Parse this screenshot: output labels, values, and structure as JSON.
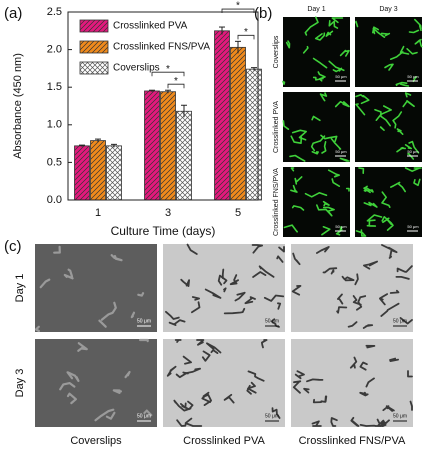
{
  "chart_data": {
    "type": "bar",
    "panel_label": "(a)",
    "y_label": "Absorbance (450 nm)",
    "x_label": "Culture Time (days)",
    "categories": [
      "1",
      "3",
      "5"
    ],
    "series": [
      {
        "name": "Crosslinked PVA",
        "color": "#e3197d",
        "values": [
          0.72,
          1.45,
          2.25
        ],
        "errors": [
          0.01,
          0.01,
          0.05
        ]
      },
      {
        "name": "Crosslinked FNS/PVA",
        "color": "#f08a1c",
        "values": [
          0.79,
          1.44,
          2.03
        ],
        "errors": [
          0.02,
          0.02,
          0.08
        ]
      },
      {
        "name": "Coverslips",
        "color": "#ffffff",
        "values": [
          0.72,
          1.18,
          1.74
        ],
        "errors": [
          0.02,
          0.08,
          0.02
        ]
      }
    ],
    "ylim": [
      0,
      2.5
    ],
    "yticks": [
      {
        "value": 0,
        "label": "0.0"
      },
      0.5,
      {
        "value": 1,
        "label": "1.0"
      },
      1.5,
      {
        "value": 2,
        "label": "2.0"
      },
      2.5
    ],
    "significance": [
      {
        "category": "3",
        "from": "Crosslinked PVA",
        "to": "Coverslips",
        "label": "*"
      },
      {
        "category": "3",
        "from": "Crosslinked FNS/PVA",
        "to": "Coverslips",
        "label": "*"
      },
      {
        "category": "5",
        "from": "Crosslinked PVA",
        "to": "Coverslips",
        "label": "*"
      },
      {
        "category": "5",
        "from": "Crosslinked FNS/PVA",
        "to": "Coverslips",
        "label": "*"
      }
    ]
  },
  "panel_b": {
    "label": "(b)",
    "columns": [
      "Day 1",
      "Day 3"
    ],
    "rows": [
      "Coverslips",
      "Crosslinked PVA",
      "Crosslinked FNS/PVA"
    ],
    "scale_bar": "50 μm"
  },
  "panel_c": {
    "label": "(c)",
    "columns": [
      "Coverslips",
      "Crosslinked PVA",
      "Crosslinked FNS/PVA"
    ],
    "rows": [
      "Day 1",
      "Day 3"
    ],
    "scale_bar": "50 μm"
  }
}
